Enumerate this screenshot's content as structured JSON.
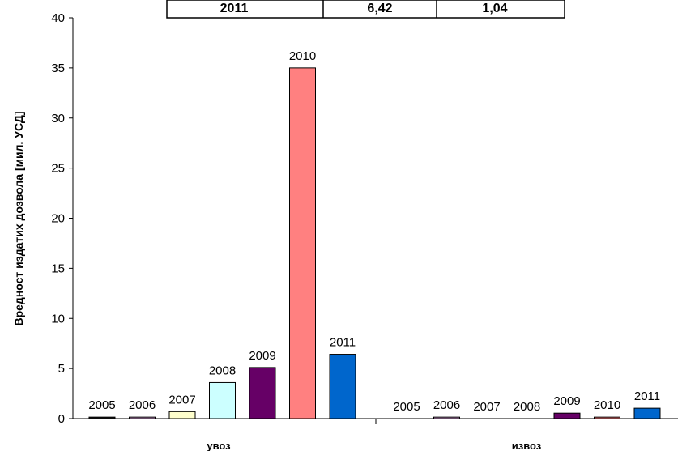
{
  "table_row": {
    "cells": [
      "2011",
      "6,42",
      "1,04"
    ]
  },
  "chart_data": {
    "type": "bar",
    "ylabel": "Вредност издатих дозвола [мил. УСД]",
    "ylim": [
      0,
      40
    ],
    "yticks": [
      0,
      5,
      10,
      15,
      20,
      25,
      30,
      35,
      40
    ],
    "grid": false,
    "categories": [
      "увоз",
      "извоз"
    ],
    "series": [
      {
        "name": "2005",
        "color": "#1a1a1a",
        "values": [
          0.15,
          0.0
        ],
        "labels": [
          "2005",
          "2005"
        ]
      },
      {
        "name": "2006",
        "color": "#cc99cc",
        "values": [
          0.15,
          0.15
        ],
        "labels": [
          "2006",
          "2006"
        ]
      },
      {
        "name": "2007",
        "color": "#ffffcc",
        "values": [
          0.7,
          0.0
        ],
        "labels": [
          "2007",
          "2007"
        ]
      },
      {
        "name": "2008",
        "color": "#ccffff",
        "values": [
          3.6,
          0.0
        ],
        "labels": [
          "2008",
          "2008"
        ]
      },
      {
        "name": "2009",
        "color": "#660066",
        "values": [
          5.1,
          0.55
        ],
        "labels": [
          "2009",
          "2009"
        ]
      },
      {
        "name": "2010",
        "color": "#ff8080",
        "values": [
          35.0,
          0.15
        ],
        "labels": [
          "2010",
          "2010"
        ]
      },
      {
        "name": "2011",
        "color": "#0066cc",
        "values": [
          6.42,
          1.04
        ],
        "labels": [
          "2011",
          "2011"
        ]
      }
    ]
  }
}
